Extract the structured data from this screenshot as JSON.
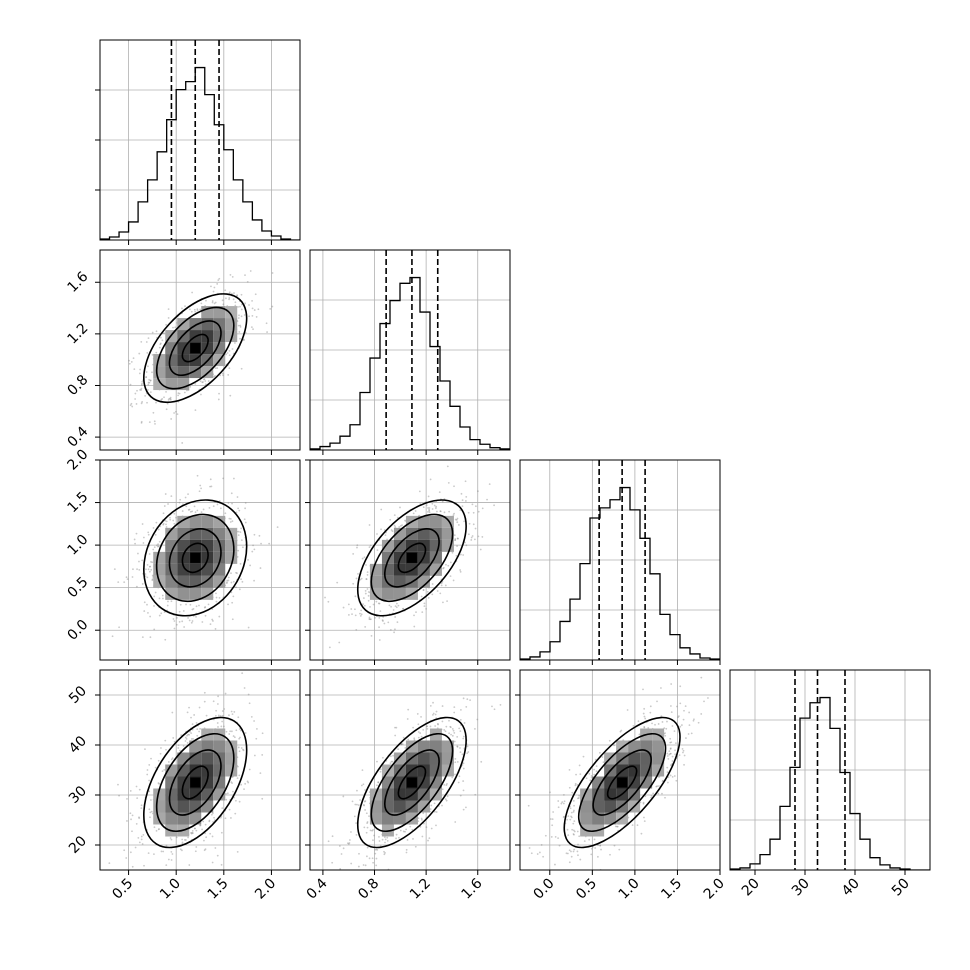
{
  "chart_data": {
    "type": "corner",
    "parameters": [
      {
        "ticks": [
          0.5,
          1.0,
          1.5,
          2.0
        ],
        "tick_labels": [
          "0.5",
          "1.0",
          "1.5",
          "2.0"
        ],
        "range": [
          0.2,
          2.3
        ],
        "quantiles": [
          0.95,
          1.2,
          1.45
        ]
      },
      {
        "ticks": [
          0.4,
          0.8,
          1.2,
          1.6
        ],
        "tick_labels": [
          "0.4",
          "0.8",
          "1.2",
          "1.6"
        ],
        "range": [
          0.3,
          1.85
        ],
        "quantiles": [
          0.89,
          1.09,
          1.29
        ]
      },
      {
        "ticks": [
          0.0,
          0.5,
          1.0,
          1.5,
          2.0
        ],
        "tick_labels": [
          "0.0",
          "0.5",
          "1.0",
          "1.5",
          "2.0"
        ],
        "range": [
          -0.35,
          2.0
        ],
        "quantiles": [
          0.58,
          0.85,
          1.12
        ]
      },
      {
        "ticks": [
          20,
          30,
          40,
          50
        ],
        "tick_labels": [
          "20",
          "30",
          "40",
          "50"
        ],
        "range": [
          15,
          55
        ],
        "quantiles": [
          28,
          32.5,
          38
        ]
      }
    ],
    "histograms": [
      {
        "param": 0,
        "edges_start": 0.2,
        "bin_width": 0.1,
        "counts": [
          1,
          3,
          8,
          18,
          38,
          60,
          88,
          120,
          150,
          158,
          172,
          145,
          115,
          90,
          60,
          38,
          20,
          9,
          4,
          1,
          0
        ]
      },
      {
        "param": 1,
        "edges_start": 0.3,
        "bin_width": 0.0775,
        "counts": [
          1,
          3,
          6,
          12,
          22,
          50,
          80,
          110,
          130,
          145,
          150,
          120,
          90,
          60,
          38,
          20,
          9,
          5,
          2,
          1
        ]
      },
      {
        "param": 2,
        "edges_start": -0.35,
        "bin_width": 0.1175,
        "counts": [
          1,
          3,
          8,
          18,
          38,
          60,
          95,
          140,
          150,
          158,
          170,
          148,
          120,
          85,
          45,
          25,
          12,
          6,
          2,
          1
        ]
      },
      {
        "param": 3,
        "edges_start": 15,
        "bin_width": 2.0,
        "counts": [
          1,
          2,
          6,
          15,
          30,
          62,
          100,
          148,
          163,
          168,
          138,
          95,
          55,
          30,
          12,
          5,
          2,
          1,
          0,
          0
        ]
      }
    ],
    "pairs": [
      {
        "x": 0,
        "y": 1,
        "mean": [
          1.2,
          1.09
        ],
        "sd": [
          0.27,
          0.21
        ],
        "corr": 0.55
      },
      {
        "x": 0,
        "y": 2,
        "mean": [
          1.2,
          0.85
        ],
        "sd": [
          0.27,
          0.34
        ],
        "corr": 0.2
      },
      {
        "x": 1,
        "y": 2,
        "mean": [
          1.09,
          0.85
        ],
        "sd": [
          0.21,
          0.34
        ],
        "corr": 0.55
      },
      {
        "x": 0,
        "y": 3,
        "mean": [
          1.2,
          32.5
        ],
        "sd": [
          0.27,
          6.5
        ],
        "corr": 0.5
      },
      {
        "x": 1,
        "y": 3,
        "mean": [
          1.09,
          32.5
        ],
        "sd": [
          0.21,
          6.5
        ],
        "corr": 0.65
      },
      {
        "x": 2,
        "y": 3,
        "mean": [
          0.85,
          32.5
        ],
        "sd": [
          0.34,
          6.5
        ],
        "corr": 0.7
      }
    ],
    "contour_levels_sigma": [
      0.5,
      1.0,
      1.5,
      2.0
    ],
    "grid": true,
    "scatter_color": "#8a8a8a",
    "line_color": "#000000",
    "grid_color": "#b0b0b0"
  }
}
